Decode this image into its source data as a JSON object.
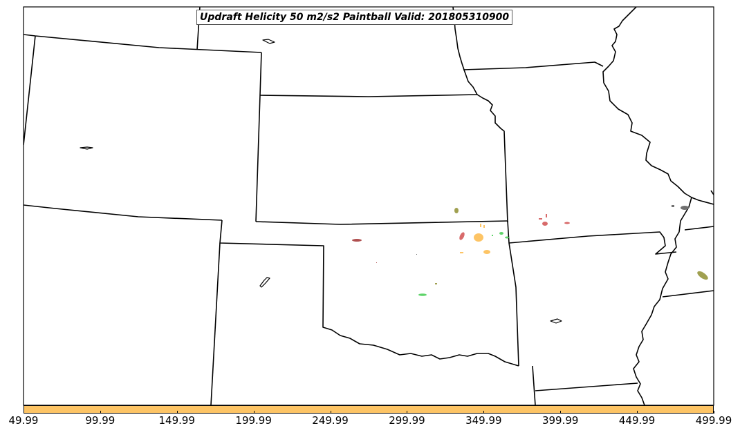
{
  "title": "Updraft Helicity 50 m2/s2 Paintball Valid: 201805310900",
  "colorbar": {
    "color": "#fdc465",
    "ticks": [
      "49.99",
      "99.99",
      "149.99",
      "199.99",
      "249.99",
      "299.99",
      "349.99",
      "399.99",
      "449.99",
      "499.99"
    ]
  },
  "colors": {
    "border": "#000000",
    "paint_red": "#d86a6a",
    "paint_orange": "#fdc465",
    "paint_green": "#5fd46a",
    "paint_olive": "#a0a050",
    "paint_brown": "#b05050",
    "paint_gray": "#707070"
  }
}
